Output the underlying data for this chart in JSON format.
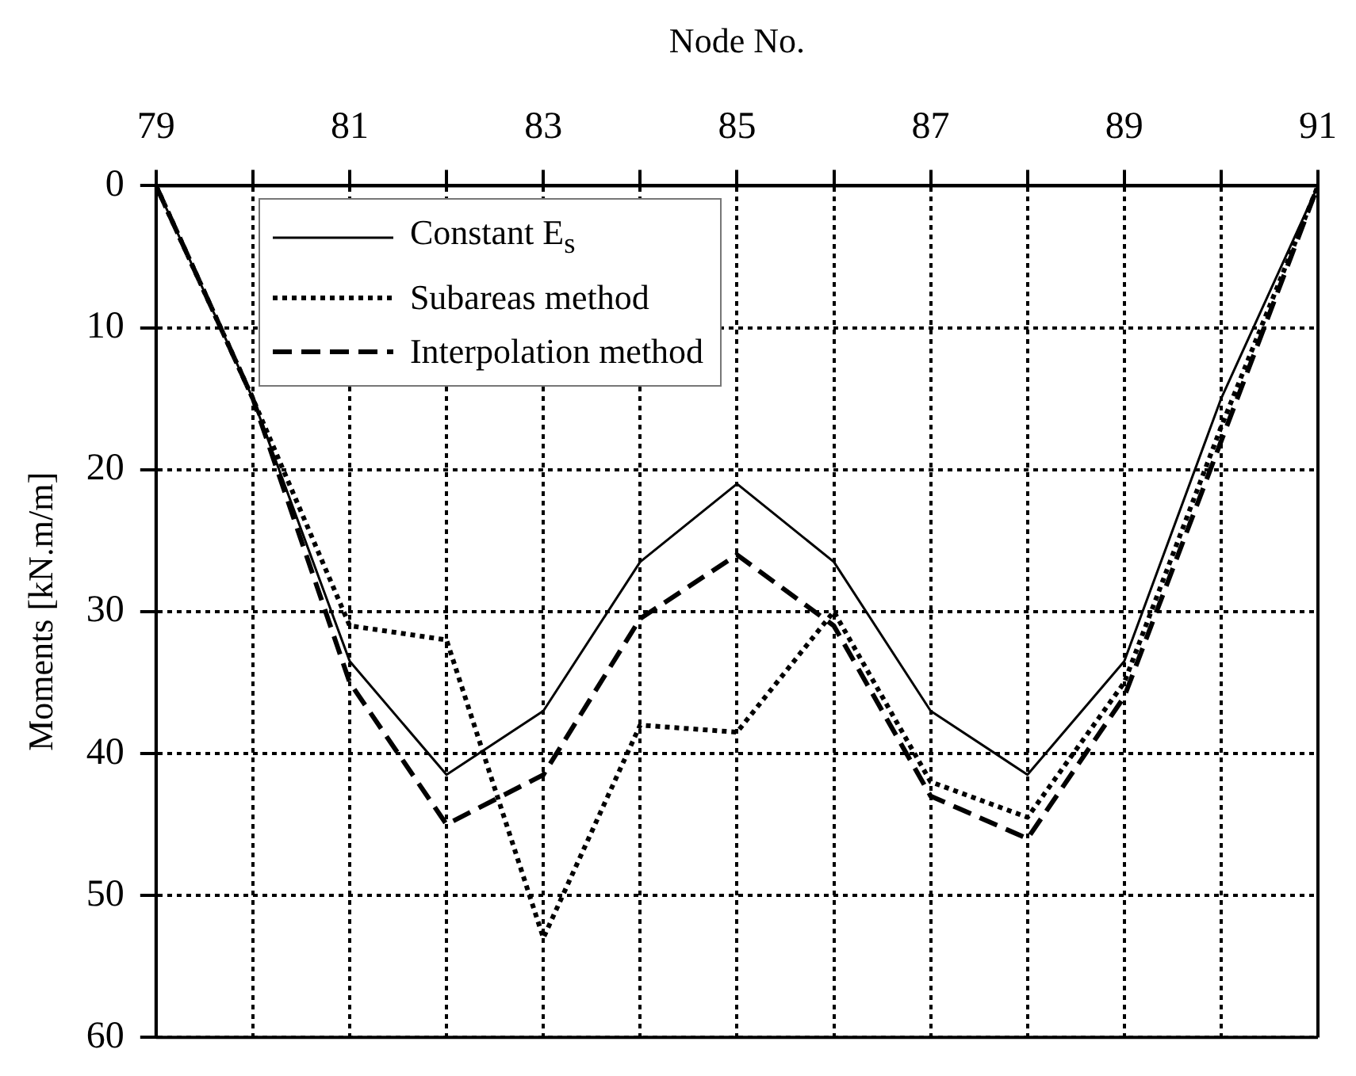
{
  "chart_data": {
    "type": "line",
    "xlabel": "Node No.",
    "ylabel": "Moments [kN.m/m]",
    "x": [
      79,
      80,
      81,
      82,
      83,
      84,
      85,
      86,
      87,
      88,
      89,
      90,
      91
    ],
    "xlim": [
      79,
      91
    ],
    "xticks": [
      79,
      {
        "value": 80,
        "label": null
      },
      81,
      {
        "value": 82,
        "label": null
      },
      83,
      {
        "value": 84,
        "label": null
      },
      85,
      {
        "value": 86,
        "label": null
      },
      87,
      {
        "value": 88,
        "label": null
      },
      89,
      {
        "value": 90,
        "label": null
      },
      91
    ],
    "ylim": [
      60,
      0
    ],
    "yticks": [
      0,
      10,
      20,
      30,
      40,
      50,
      60
    ],
    "grid": true,
    "legend": "top left",
    "marker": "none",
    "series": [
      {
        "name": "Constant E$_{s}$",
        "color": "#000000",
        "line_style": "solid",
        "values": [
          0,
          15,
          33.5,
          41.5,
          37,
          26.5,
          21,
          26.5,
          37,
          41.5,
          33.5,
          15,
          0
        ]
      },
      {
        "name": "Subareas method",
        "color": "#000000",
        "line_style": "dotted",
        "values": [
          0,
          15,
          31,
          32,
          53,
          38,
          38.5,
          30,
          42,
          44.5,
          35,
          17,
          0
        ]
      },
      {
        "name": "Interpolation method",
        "color": "#000000",
        "line_style": "dashed",
        "values": [
          0,
          15,
          35,
          45,
          41.5,
          30.5,
          26,
          31,
          43,
          46,
          36,
          18,
          0
        ]
      }
    ]
  }
}
